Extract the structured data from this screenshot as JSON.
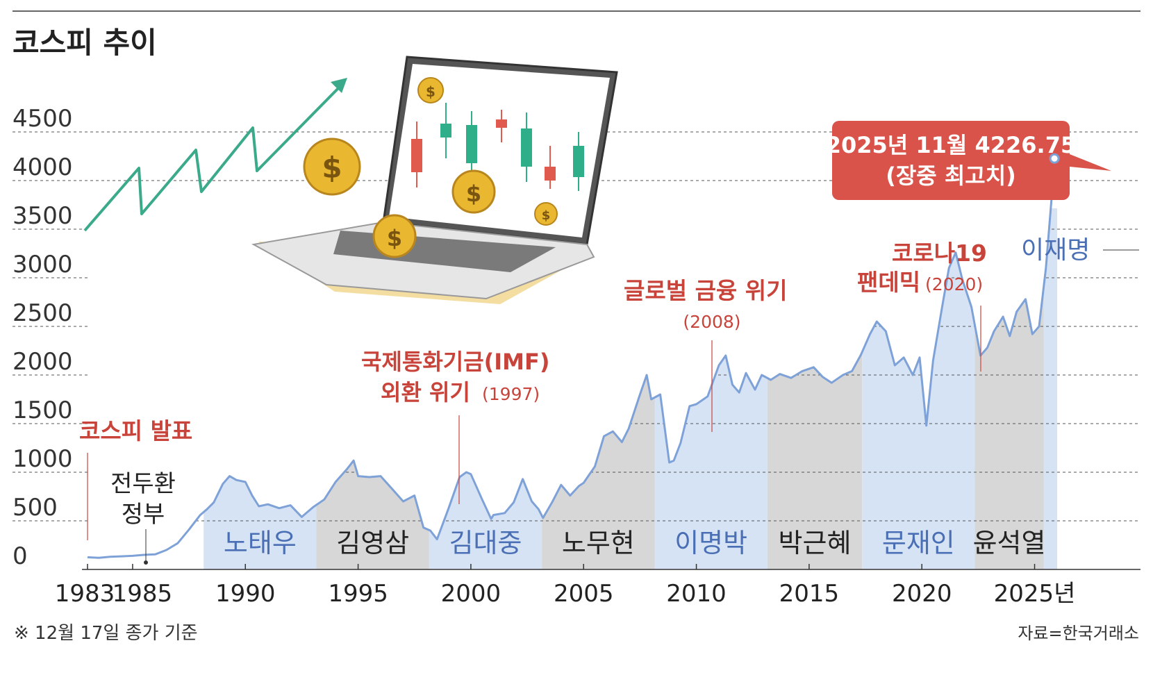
{
  "title": "코스피 추이",
  "footnote": "※ 12월 17일 종가 기준",
  "source": "자료=한국거래소",
  "callout": {
    "line1": "2025년 11월 4226.75",
    "line2": "(장중 최고치)"
  },
  "events": [
    {
      "id": "kospi-launch",
      "line1": "코스피 발표",
      "year_text": ""
    },
    {
      "id": "imf-crisis",
      "line1": "국제통화기금(IMF)",
      "line2": "외환 위기",
      "year_text": "(1997)"
    },
    {
      "id": "financial-crisis",
      "line1": "글로벌 금융 위기",
      "year_text": "(2008)"
    },
    {
      "id": "pandemic",
      "line1": "코로나19",
      "line2": "팬데믹",
      "year_text": "(2020)"
    }
  ],
  "colors": {
    "line": "#7ea2d8",
    "blue_band": "#d6e3f5",
    "gray_band": "#d7d7d7",
    "event_red": "#c8443a",
    "callout_red": "#d9534a",
    "arrow_green": "#3aaa8a"
  },
  "illustration": "laptop-with-candlestick-chart-and-coins",
  "chart_data": {
    "type": "area",
    "x_ticks": [
      "1983",
      "1985",
      "1990",
      "1995",
      "2000",
      "2005",
      "2010",
      "2015",
      "2020",
      "2025년"
    ],
    "y_ticks": [
      "0",
      "500",
      "1000",
      "1500",
      "2000",
      "2500",
      "3000",
      "3500",
      "4000",
      "4500"
    ],
    "ylim": [
      0,
      4500
    ],
    "xlim": [
      1983,
      2026
    ],
    "grid": "horizontal-dashed",
    "governments": [
      {
        "name": "전두환 정부",
        "start": 1983.0,
        "end": 1988.15,
        "shade": "none"
      },
      {
        "name": "노태우",
        "start": 1988.15,
        "end": 1993.15,
        "shade": "blue"
      },
      {
        "name": "김영삼",
        "start": 1993.15,
        "end": 1998.15,
        "shade": "gray"
      },
      {
        "name": "김대중",
        "start": 1998.15,
        "end": 2003.15,
        "shade": "blue"
      },
      {
        "name": "노무현",
        "start": 2003.15,
        "end": 2008.15,
        "shade": "gray"
      },
      {
        "name": "이명박",
        "start": 2008.15,
        "end": 2013.15,
        "shade": "blue"
      },
      {
        "name": "박근혜",
        "start": 2013.15,
        "end": 2017.35,
        "shade": "gray"
      },
      {
        "name": "문재인",
        "start": 2017.35,
        "end": 2022.35,
        "shade": "blue"
      },
      {
        "name": "윤석열",
        "start": 2022.35,
        "end": 2025.4,
        "shade": "gray"
      },
      {
        "name": "이재명",
        "start": 2025.4,
        "end": 2026.0,
        "shade": "blue"
      }
    ],
    "series": [
      {
        "points": [
          [
            1983.0,
            125
          ],
          [
            1983.5,
            120
          ],
          [
            1984.0,
            130
          ],
          [
            1984.5,
            135
          ],
          [
            1985.0,
            140
          ],
          [
            1985.5,
            150
          ],
          [
            1986.0,
            155
          ],
          [
            1986.5,
            200
          ],
          [
            1987.0,
            270
          ],
          [
            1987.5,
            410
          ],
          [
            1988.0,
            560
          ],
          [
            1988.3,
            620
          ],
          [
            1988.6,
            690
          ],
          [
            1989.0,
            880
          ],
          [
            1989.3,
            960
          ],
          [
            1989.6,
            920
          ],
          [
            1990.0,
            900
          ],
          [
            1990.3,
            760
          ],
          [
            1990.6,
            650
          ],
          [
            1991.0,
            670
          ],
          [
            1991.5,
            630
          ],
          [
            1992.0,
            660
          ],
          [
            1992.5,
            540
          ],
          [
            1993.0,
            640
          ],
          [
            1993.5,
            720
          ],
          [
            1994.0,
            900
          ],
          [
            1994.5,
            1030
          ],
          [
            1994.8,
            1120
          ],
          [
            1995.0,
            960
          ],
          [
            1995.5,
            950
          ],
          [
            1996.0,
            960
          ],
          [
            1996.5,
            830
          ],
          [
            1997.0,
            700
          ],
          [
            1997.5,
            760
          ],
          [
            1997.9,
            430
          ],
          [
            1998.2,
            400
          ],
          [
            1998.5,
            310
          ],
          [
            1999.0,
            620
          ],
          [
            1999.5,
            950
          ],
          [
            1999.8,
            1000
          ],
          [
            2000.0,
            980
          ],
          [
            2000.5,
            720
          ],
          [
            2000.9,
            520
          ],
          [
            2001.0,
            560
          ],
          [
            2001.5,
            580
          ],
          [
            2001.9,
            690
          ],
          [
            2002.3,
            930
          ],
          [
            2002.7,
            700
          ],
          [
            2003.0,
            620
          ],
          [
            2003.2,
            530
          ],
          [
            2003.6,
            690
          ],
          [
            2004.0,
            870
          ],
          [
            2004.4,
            760
          ],
          [
            2004.8,
            860
          ],
          [
            2005.0,
            890
          ],
          [
            2005.5,
            1060
          ],
          [
            2005.9,
            1370
          ],
          [
            2006.3,
            1420
          ],
          [
            2006.7,
            1310
          ],
          [
            2007.0,
            1450
          ],
          [
            2007.5,
            1800
          ],
          [
            2007.8,
            2000
          ],
          [
            2008.0,
            1750
          ],
          [
            2008.4,
            1800
          ],
          [
            2008.8,
            1100
          ],
          [
            2009.0,
            1120
          ],
          [
            2009.3,
            1300
          ],
          [
            2009.7,
            1680
          ],
          [
            2010.0,
            1700
          ],
          [
            2010.5,
            1780
          ],
          [
            2011.0,
            2100
          ],
          [
            2011.3,
            2200
          ],
          [
            2011.6,
            1900
          ],
          [
            2011.9,
            1820
          ],
          [
            2012.2,
            2020
          ],
          [
            2012.6,
            1850
          ],
          [
            2012.9,
            2000
          ],
          [
            2013.3,
            1950
          ],
          [
            2013.7,
            2010
          ],
          [
            2014.2,
            1970
          ],
          [
            2014.7,
            2040
          ],
          [
            2015.2,
            2080
          ],
          [
            2015.6,
            1980
          ],
          [
            2016.0,
            1920
          ],
          [
            2016.5,
            2000
          ],
          [
            2016.9,
            2040
          ],
          [
            2017.3,
            2210
          ],
          [
            2017.7,
            2420
          ],
          [
            2018.0,
            2550
          ],
          [
            2018.4,
            2450
          ],
          [
            2018.8,
            2100
          ],
          [
            2019.2,
            2180
          ],
          [
            2019.6,
            2000
          ],
          [
            2019.9,
            2180
          ],
          [
            2020.2,
            1480
          ],
          [
            2020.5,
            2150
          ],
          [
            2020.9,
            2700
          ],
          [
            2021.2,
            3100
          ],
          [
            2021.5,
            3260
          ],
          [
            2021.8,
            2980
          ],
          [
            2022.2,
            2700
          ],
          [
            2022.6,
            2200
          ],
          [
            2022.9,
            2280
          ],
          [
            2023.2,
            2450
          ],
          [
            2023.6,
            2600
          ],
          [
            2023.9,
            2400
          ],
          [
            2024.2,
            2650
          ],
          [
            2024.6,
            2780
          ],
          [
            2024.9,
            2420
          ],
          [
            2025.2,
            2500
          ],
          [
            2025.5,
            3100
          ],
          [
            2025.8,
            3950
          ],
          [
            2025.88,
            4226.75
          ],
          [
            2025.95,
            3950
          ],
          [
            2026.0,
            4000
          ]
        ]
      }
    ],
    "peak": {
      "x": 2025.88,
      "y": 4226.75
    }
  }
}
